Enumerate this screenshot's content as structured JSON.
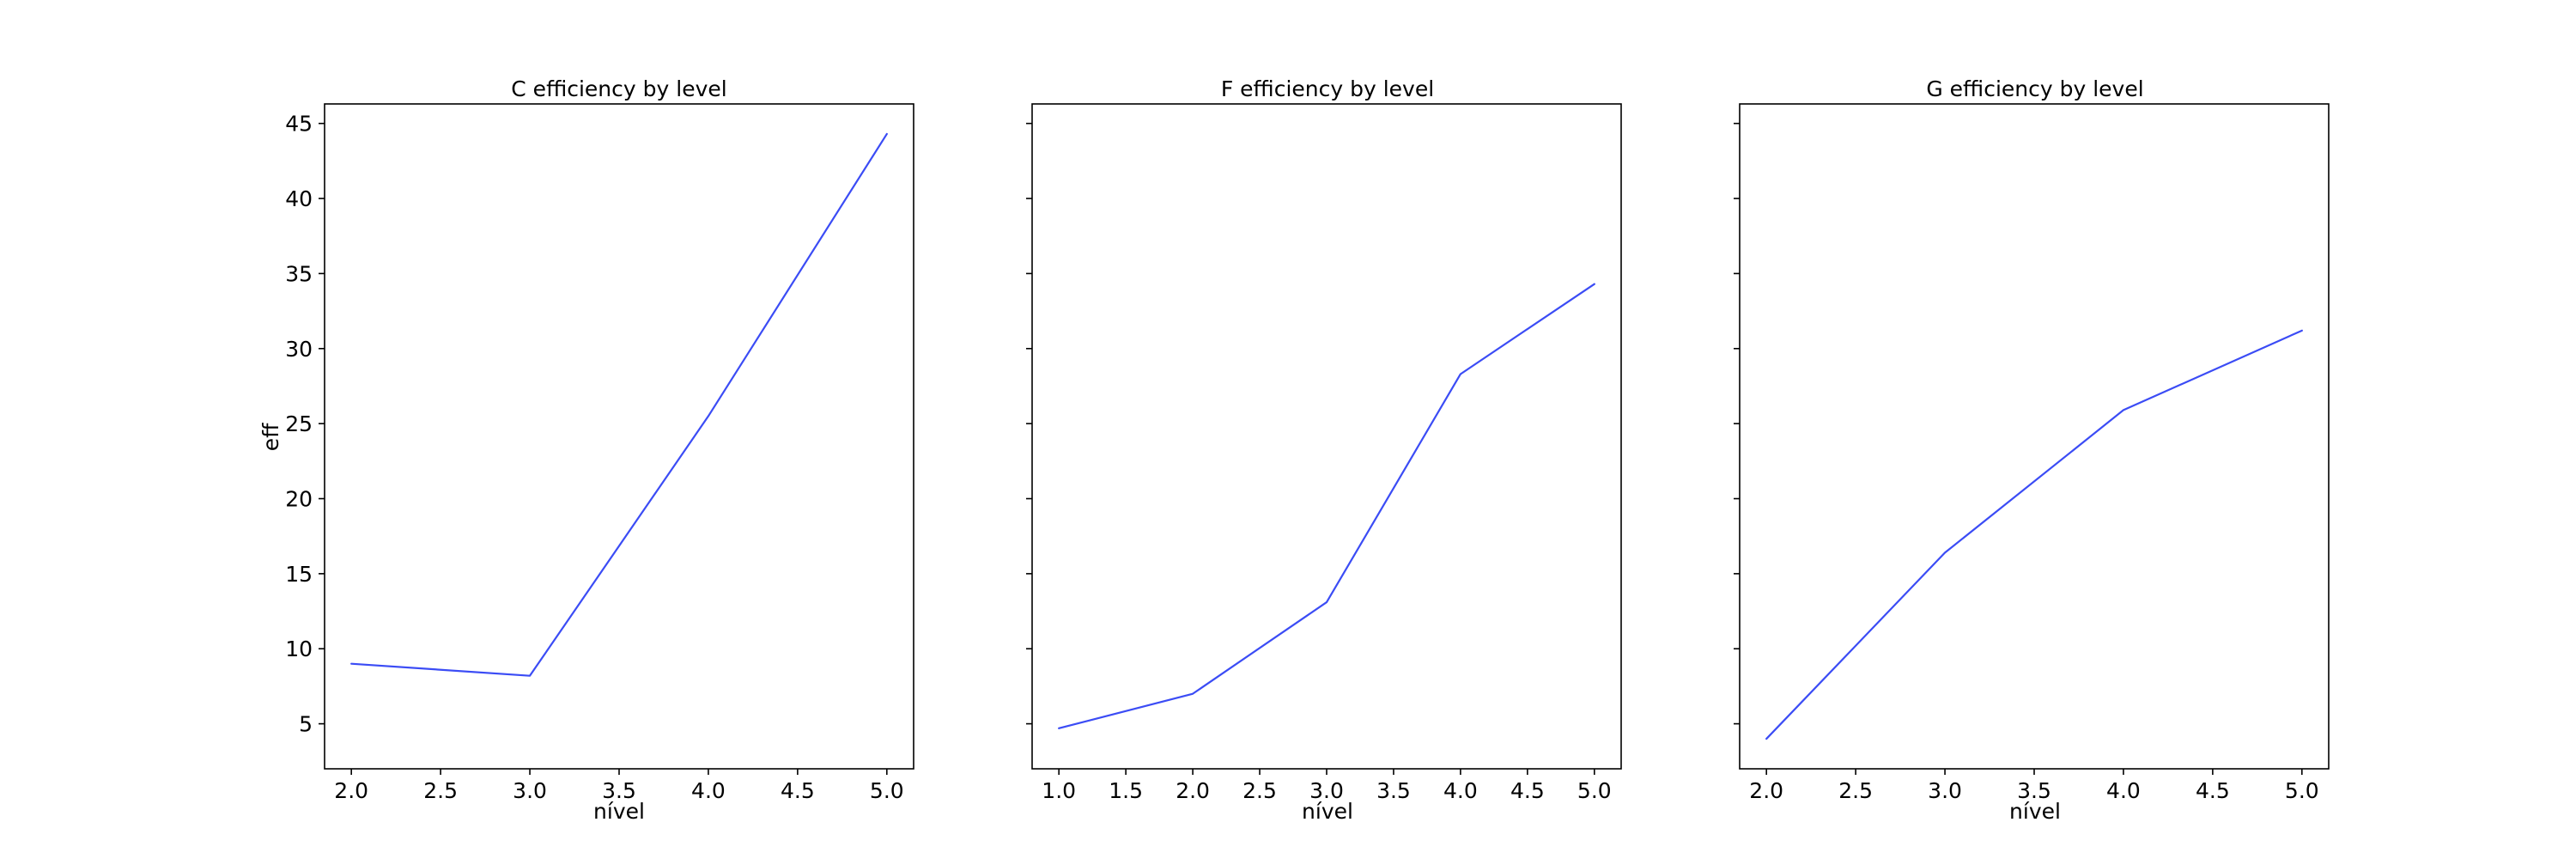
{
  "chart_data": [
    {
      "type": "line",
      "title": "C efficiency by level",
      "xlabel": "nível",
      "ylabel": "eff",
      "x": [
        2,
        3,
        4,
        5
      ],
      "series": [
        {
          "values": [
            9.0,
            8.2,
            25.5,
            44.3
          ],
          "color": "#3b4cf5"
        }
      ],
      "xticks": [
        "2.0",
        "2.5",
        "3.0",
        "3.5",
        "4.0",
        "4.5",
        "5.0"
      ],
      "yticks": [
        "5",
        "10",
        "15",
        "20",
        "25",
        "30",
        "35",
        "40",
        "45"
      ],
      "xlim": [
        1.85,
        5.15
      ],
      "ylim": [
        2.0,
        46.3
      ],
      "grid": false
    },
    {
      "type": "line",
      "title": "F efficiency by level",
      "xlabel": "nível",
      "ylabel": "",
      "x": [
        1,
        2,
        3,
        4,
        5
      ],
      "series": [
        {
          "values": [
            4.7,
            7.0,
            13.1,
            28.3,
            34.3
          ],
          "color": "#3b4cf5"
        }
      ],
      "xticks": [
        "1.0",
        "1.5",
        "2.0",
        "2.5",
        "3.0",
        "3.5",
        "4.0",
        "4.5",
        "5.0"
      ],
      "xlim": [
        0.8,
        5.2
      ],
      "ylim": [
        2.0,
        46.3
      ],
      "grid": false
    },
    {
      "type": "line",
      "title": "G efficiency by level",
      "xlabel": "nível",
      "ylabel": "",
      "x": [
        2,
        3,
        4,
        5
      ],
      "series": [
        {
          "values": [
            4.0,
            16.4,
            25.9,
            31.2
          ],
          "color": "#3b4cf5"
        }
      ],
      "xticks": [
        "2.0",
        "2.5",
        "3.0",
        "3.5",
        "4.0",
        "4.5",
        "5.0"
      ],
      "xlim": [
        1.85,
        5.15
      ],
      "ylim": [
        2.0,
        46.3
      ],
      "grid": false
    }
  ]
}
